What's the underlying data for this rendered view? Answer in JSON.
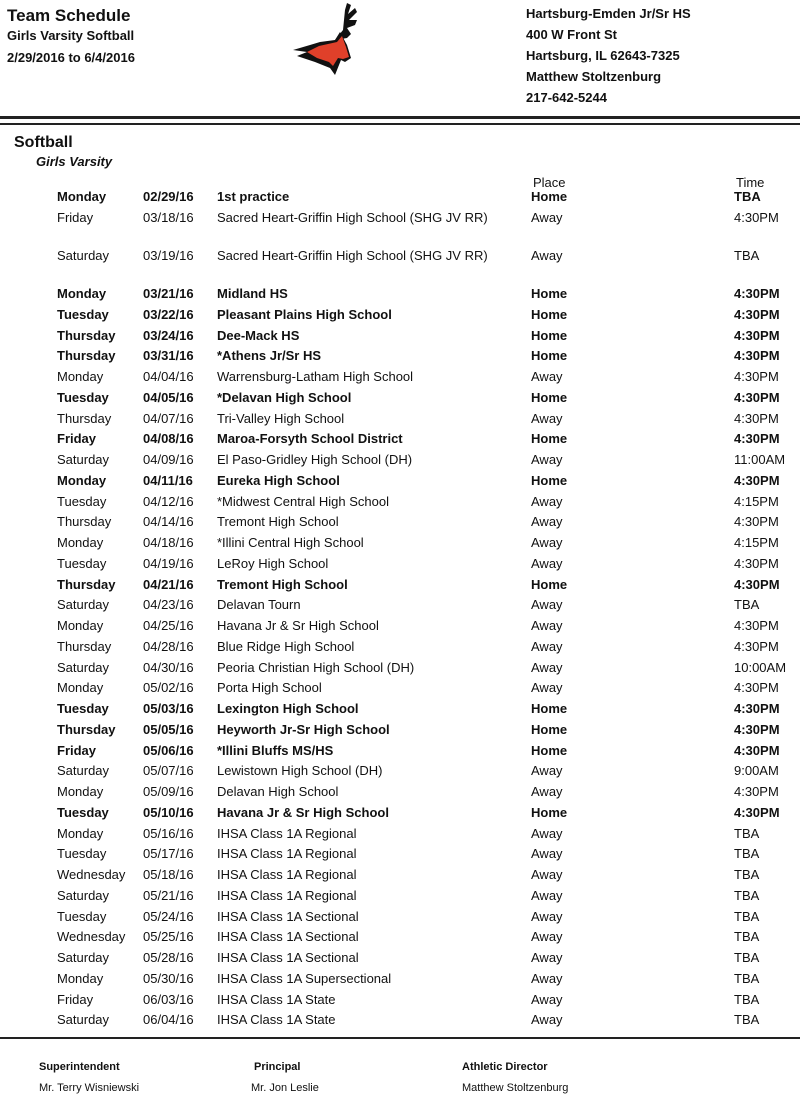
{
  "header": {
    "title": "Team Schedule",
    "subtitle": "Girls Varsity Softball",
    "date_range": "2/29/2016 to 6/4/2016",
    "school": [
      "Hartsburg-Emden Jr/Sr HS",
      "400 W Front St",
      "Hartsburg, IL  62643-7325",
      "Matthew Stoltzenburg",
      "217-642-5244"
    ]
  },
  "section": {
    "sport": "Softball",
    "level": "Girls Varsity",
    "place_header": "Place",
    "time_header": "Time"
  },
  "rows": [
    [
      "Monday",
      "02/29/16",
      "1st practice",
      "Home",
      "TBA",
      1
    ],
    [
      "Friday",
      "03/18/16",
      "Sacred Heart-Griffin High School (SHG JV RR)",
      "Away",
      "4:30PM",
      0
    ],
    [
      "Saturday",
      "03/19/16",
      "Sacred Heart-Griffin High School (SHG JV RR)",
      "Away",
      "TBA",
      0
    ],
    [
      "Monday",
      "03/21/16",
      "Midland HS",
      "Home",
      "4:30PM",
      1
    ],
    [
      "Tuesday",
      "03/22/16",
      "Pleasant Plains High School",
      "Home",
      "4:30PM",
      1
    ],
    [
      "Thursday",
      "03/24/16",
      "Dee-Mack HS",
      "Home",
      "4:30PM",
      1
    ],
    [
      "Thursday",
      "03/31/16",
      "*Athens Jr/Sr HS",
      "Home",
      "4:30PM",
      1
    ],
    [
      "Monday",
      "04/04/16",
      "Warrensburg-Latham High School",
      "Away",
      "4:30PM",
      0
    ],
    [
      "Tuesday",
      "04/05/16",
      "*Delavan High School",
      "Home",
      "4:30PM",
      1
    ],
    [
      "Thursday",
      "04/07/16",
      "Tri-Valley High School",
      "Away",
      "4:30PM",
      0
    ],
    [
      "Friday",
      "04/08/16",
      "Maroa-Forsyth School District",
      "Home",
      "4:30PM",
      1
    ],
    [
      "Saturday",
      "04/09/16",
      "El Paso-Gridley High School (DH)",
      "Away",
      "11:00AM",
      0
    ],
    [
      "Monday",
      "04/11/16",
      "Eureka High School",
      "Home",
      "4:30PM",
      1
    ],
    [
      "Tuesday",
      "04/12/16",
      "*Midwest Central High School",
      "Away",
      "4:15PM",
      0
    ],
    [
      "Thursday",
      "04/14/16",
      "Tremont High School",
      "Away",
      "4:30PM",
      0
    ],
    [
      "Monday",
      "04/18/16",
      "*Illini Central High School",
      "Away",
      "4:15PM",
      0
    ],
    [
      "Tuesday",
      "04/19/16",
      "LeRoy High School",
      "Away",
      "4:30PM",
      0
    ],
    [
      "Thursday",
      "04/21/16",
      "Tremont High School",
      "Home",
      "4:30PM",
      1
    ],
    [
      "Saturday",
      "04/23/16",
      "Delavan Tourn",
      "Away",
      "TBA",
      0
    ],
    [
      "Monday",
      "04/25/16",
      "Havana Jr & Sr High School",
      "Away",
      "4:30PM",
      0
    ],
    [
      "Thursday",
      "04/28/16",
      "Blue Ridge High School",
      "Away",
      "4:30PM",
      0
    ],
    [
      "Saturday",
      "04/30/16",
      "Peoria Christian High School (DH)",
      "Away",
      "10:00AM",
      0
    ],
    [
      "Monday",
      "05/02/16",
      "Porta High School",
      "Away",
      "4:30PM",
      0
    ],
    [
      "Tuesday",
      "05/03/16",
      "Lexington High School",
      "Home",
      "4:30PM",
      1
    ],
    [
      "Thursday",
      "05/05/16",
      "Heyworth Jr-Sr High School",
      "Home",
      "4:30PM",
      1
    ],
    [
      "Friday",
      "05/06/16",
      "*Illini Bluffs MS/HS",
      "Home",
      "4:30PM",
      1
    ],
    [
      "Saturday",
      "05/07/16",
      "Lewistown High School (DH)",
      "Away",
      "9:00AM",
      0
    ],
    [
      "Monday",
      "05/09/16",
      "Delavan High School",
      "Away",
      "4:30PM",
      0
    ],
    [
      "Tuesday",
      "05/10/16",
      "Havana Jr & Sr High School",
      "Home",
      "4:30PM",
      1
    ],
    [
      "Monday",
      "05/16/16",
      "IHSA Class 1A Regional",
      "Away",
      "TBA",
      0
    ],
    [
      "Tuesday",
      "05/17/16",
      "IHSA Class 1A Regional",
      "Away",
      "TBA",
      0
    ],
    [
      "Wednesday",
      "05/18/16",
      "IHSA Class 1A Regional",
      "Away",
      "TBA",
      0
    ],
    [
      "Saturday",
      "05/21/16",
      "IHSA Class 1A Regional",
      "Away",
      "TBA",
      0
    ],
    [
      "Tuesday",
      "05/24/16",
      "IHSA Class 1A Sectional",
      "Away",
      "TBA",
      0
    ],
    [
      "Wednesday",
      "05/25/16",
      "IHSA Class 1A Sectional",
      "Away",
      "TBA",
      0
    ],
    [
      "Saturday",
      "05/28/16",
      "IHSA Class 1A Sectional",
      "Away",
      "TBA",
      0
    ],
    [
      "Monday",
      "05/30/16",
      "IHSA Class 1A Supersectional",
      "Away",
      "TBA",
      0
    ],
    [
      "Friday",
      "06/03/16",
      "IHSA Class 1A State",
      "Away",
      "TBA",
      0
    ],
    [
      "Saturday",
      "06/04/16",
      "IHSA Class 1A State",
      "Away",
      "TBA",
      0
    ]
  ],
  "footer": [
    {
      "role": "Superintendent",
      "name": "Mr. Terry Wisniewski"
    },
    {
      "role": "Principal",
      "name": "Mr. Jon Leslie"
    },
    {
      "role": "Athletic Director",
      "name": "Matthew Stoltzenburg"
    }
  ],
  "logo": {
    "icon": "deer-head-mascot",
    "color": "#e0402a"
  }
}
